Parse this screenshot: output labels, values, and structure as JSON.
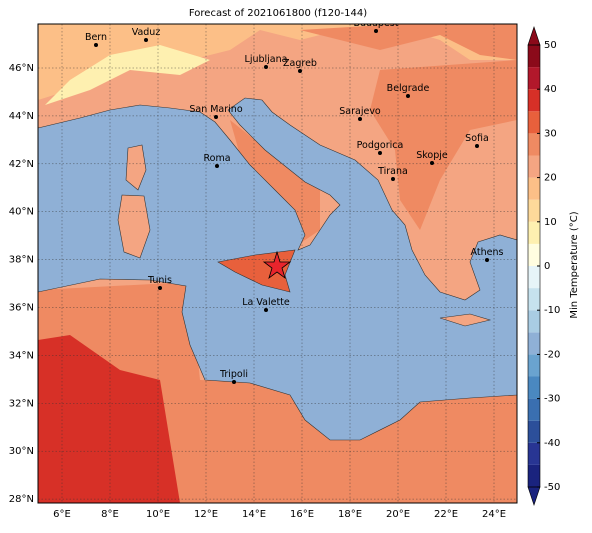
{
  "title": "Forecast of 2021061800 (f120-144)",
  "cities": [
    "Bern",
    "Vaduz",
    "Budapest",
    "Ljubljana",
    "Zagreb",
    "Belgrade",
    "San Marino",
    "Sarajevo",
    "Sofia",
    "Podgorica",
    "Skopje",
    "Roma",
    "Tirana",
    "Athens",
    "Tunis",
    "La Valette",
    "Tripoli"
  ],
  "lon_ticks": [
    "6°E",
    "8°E",
    "10°E",
    "12°E",
    "14°E",
    "16°E",
    "18°E",
    "20°E",
    "22°E",
    "24°E"
  ],
  "lat_ticks": [
    "46°N",
    "44°N",
    "42°N",
    "40°N",
    "38°N",
    "36°N",
    "34°N",
    "32°N",
    "30°N",
    "28°N"
  ],
  "colorbar": {
    "label": "Min Temperature (°C)",
    "lim": [
      -50,
      50
    ],
    "ticks": [
      -50,
      -40,
      -30,
      -20,
      -10,
      0,
      10,
      20,
      30,
      40,
      50
    ],
    "colors": [
      "#1a237e",
      "#283593",
      "#2c4f9a",
      "#3a6fb0",
      "#4a88c0",
      "#6aa3cf",
      "#8fb0d6",
      "#a9cce3",
      "#c6e2ee",
      "#e6f4f8",
      "#fffde0",
      "#fef0b0",
      "#fdd99a",
      "#fcbf87",
      "#f4a582",
      "#ef8a62",
      "#e8603c",
      "#d73027",
      "#b2182b",
      "#8b0a1a"
    ]
  }
}
